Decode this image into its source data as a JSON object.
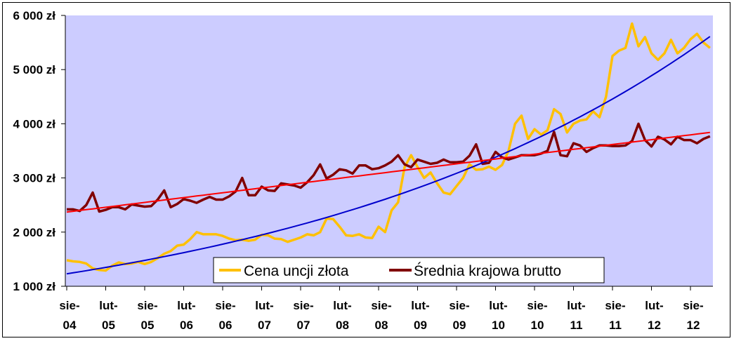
{
  "chart_data": {
    "type": "line",
    "title": "",
    "xlabel": "",
    "ylabel": "",
    "ylim": [
      1000,
      6000
    ],
    "y_ticks": [
      "1 000 zł",
      "2 000 zł",
      "3 000 zł",
      "4 000 zł",
      "5 000 zł",
      "6 000 zł"
    ],
    "y_tick_values": [
      1000,
      2000,
      3000,
      4000,
      5000,
      6000
    ],
    "x_tick_labels": [
      [
        "sie-",
        "04"
      ],
      [
        "lut-",
        "05"
      ],
      [
        "sie-",
        "05"
      ],
      [
        "lut-",
        "06"
      ],
      [
        "sie-",
        "06"
      ],
      [
        "lut-",
        "07"
      ],
      [
        "sie-",
        "07"
      ],
      [
        "lut-",
        "08"
      ],
      [
        "sie-",
        "08"
      ],
      [
        "lut-",
        "09"
      ],
      [
        "sie-",
        "09"
      ],
      [
        "lut-",
        "10"
      ],
      [
        "sie-",
        "10"
      ],
      [
        "lut-",
        "11"
      ],
      [
        "sie-",
        "11"
      ],
      [
        "lut-",
        "12"
      ],
      [
        "sie-",
        "12"
      ]
    ],
    "x_start": "2004-08",
    "grid": false,
    "plot_background": "#ccccff",
    "legend": {
      "placement": "bottom-right",
      "entries": [
        {
          "label": "Cena uncji złota",
          "color": "#ffc000"
        },
        {
          "label": "Średnia krajowa brutto",
          "color": "#800000"
        }
      ]
    },
    "series": [
      {
        "name": "Cena uncji złota",
        "color": "#ffc000",
        "values": [
          1480,
          1460,
          1450,
          1420,
          1330,
          1300,
          1290,
          1380,
          1440,
          1410,
          1420,
          1450,
          1410,
          1450,
          1520,
          1600,
          1650,
          1750,
          1770,
          1870,
          2000,
          1960,
          1960,
          1960,
          1930,
          1880,
          1850,
          1860,
          1840,
          1860,
          1950,
          1940,
          1880,
          1870,
          1820,
          1860,
          1900,
          1960,
          1940,
          2000,
          2250,
          2240,
          2100,
          1940,
          1930,
          1960,
          1900,
          1890,
          2100,
          2000,
          2400,
          2550,
          3200,
          3420,
          3200,
          3000,
          3100,
          2900,
          2730,
          2700,
          2850,
          3000,
          3250,
          3150,
          3160,
          3210,
          3150,
          3240,
          3500,
          4000,
          4150,
          3720,
          3900,
          3800,
          3880,
          4270,
          4180,
          3840,
          4000,
          4060,
          4080,
          4230,
          4120,
          4500,
          5250,
          5350,
          5400,
          5850,
          5430,
          5600,
          5300,
          5180,
          5300,
          5550,
          5300,
          5400,
          5560,
          5660,
          5500,
          5400
        ]
      },
      {
        "name": "Średnia krajowa brutto",
        "color": "#800000",
        "values": [
          2420,
          2420,
          2390,
          2500,
          2730,
          2380,
          2410,
          2460,
          2460,
          2420,
          2510,
          2490,
          2470,
          2480,
          2600,
          2770,
          2460,
          2520,
          2610,
          2580,
          2540,
          2600,
          2650,
          2600,
          2600,
          2660,
          2750,
          3000,
          2680,
          2680,
          2840,
          2770,
          2760,
          2900,
          2880,
          2860,
          2820,
          2920,
          3050,
          3250,
          2990,
          3060,
          3160,
          3140,
          3080,
          3230,
          3230,
          3160,
          3180,
          3230,
          3300,
          3420,
          3250,
          3200,
          3340,
          3300,
          3260,
          3280,
          3340,
          3290,
          3290,
          3300,
          3410,
          3620,
          3260,
          3280,
          3480,
          3380,
          3340,
          3380,
          3420,
          3420,
          3420,
          3450,
          3500,
          3850,
          3420,
          3400,
          3640,
          3600,
          3480,
          3550,
          3600,
          3600,
          3590,
          3590,
          3600,
          3680,
          4000,
          3700,
          3580,
          3760,
          3710,
          3620,
          3760,
          3700,
          3700,
          3640,
          3720,
          3770
        ]
      },
      {
        "name": "",
        "color": "#0000cc",
        "trendline_for": "Cena uncji złota",
        "trend": "exponential",
        "values": [
          1230,
          5610
        ]
      },
      {
        "name": "",
        "color": "#ff0000",
        "trendline_for": "Średnia krajowa brutto",
        "trend": "linear",
        "values": [
          2370,
          3840
        ]
      }
    ]
  }
}
